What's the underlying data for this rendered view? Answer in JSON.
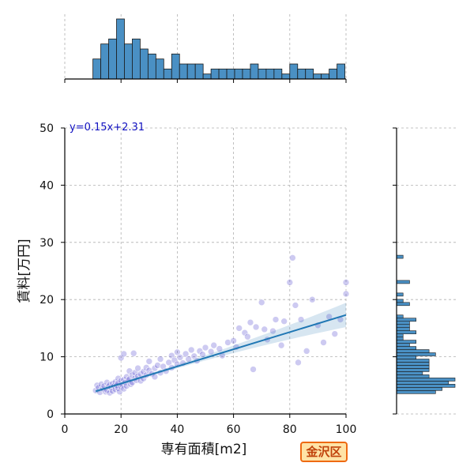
{
  "chart_data": {
    "type": "scatter",
    "xlabel": "専有面積[m2]",
    "ylabel": "賃料[万円]",
    "xlim": [
      0,
      100
    ],
    "ylim": [
      0,
      50
    ],
    "x_ticks": [
      "0",
      "20",
      "40",
      "60",
      "80",
      "100"
    ],
    "y_ticks": [
      "0",
      "10",
      "20",
      "30",
      "40",
      "50"
    ],
    "grid": true,
    "regression": {
      "equation_label": "y=0.15x+2.31",
      "slope": 0.15,
      "intercept": 2.31,
      "x_range": [
        11,
        100
      ]
    },
    "marker_color": "#5a4fd0",
    "line_color": "#1f77b4",
    "hist_color": "#4a90c4",
    "points": [
      [
        11,
        4.1
      ],
      [
        11.5,
        5.0
      ],
      [
        12,
        4.6
      ],
      [
        12.5,
        3.8
      ],
      [
        13,
        5.2
      ],
      [
        13.5,
        4.4
      ],
      [
        14,
        4.9
      ],
      [
        14.5,
        3.9
      ],
      [
        15,
        5.5
      ],
      [
        15,
        4.2
      ],
      [
        15.5,
        4.8
      ],
      [
        16,
        5.1
      ],
      [
        16,
        3.7
      ],
      [
        16.5,
        4.6
      ],
      [
        17,
        5.3
      ],
      [
        17,
        4.0
      ],
      [
        17.5,
        4.9
      ],
      [
        18,
        5.6
      ],
      [
        18,
        4.3
      ],
      [
        18.5,
        5.0
      ],
      [
        19,
        6.2
      ],
      [
        19,
        4.5
      ],
      [
        19,
        5.4
      ],
      [
        19.5,
        3.9
      ],
      [
        20,
        5.8
      ],
      [
        20,
        4.7
      ],
      [
        20,
        9.8
      ],
      [
        20.5,
        5.1
      ],
      [
        21,
        6.0
      ],
      [
        21,
        4.4
      ],
      [
        21,
        10.5
      ],
      [
        21.5,
        5.5
      ],
      [
        22,
        6.5
      ],
      [
        22,
        4.9
      ],
      [
        22.5,
        5.8
      ],
      [
        23,
        6.1
      ],
      [
        23,
        7.5
      ],
      [
        23.5,
        5.2
      ],
      [
        24,
        6.8
      ],
      [
        24,
        5.5
      ],
      [
        24.5,
        10.6
      ],
      [
        25,
        6.3
      ],
      [
        25,
        7.2
      ],
      [
        25.5,
        5.9
      ],
      [
        26,
        6.6
      ],
      [
        26,
        8.0
      ],
      [
        27,
        7.0
      ],
      [
        27,
        5.8
      ],
      [
        28,
        7.4
      ],
      [
        28,
        6.2
      ],
      [
        29,
        8.1
      ],
      [
        29,
        6.8
      ],
      [
        30,
        7.6
      ],
      [
        30,
        9.2
      ],
      [
        31,
        7.0
      ],
      [
        32,
        8.0
      ],
      [
        32,
        6.5
      ],
      [
        33,
        8.5
      ],
      [
        34,
        7.2
      ],
      [
        34,
        9.6
      ],
      [
        35,
        8.3
      ],
      [
        36,
        7.5
      ],
      [
        37,
        9.0
      ],
      [
        38,
        8.1
      ],
      [
        38,
        10.2
      ],
      [
        39,
        9.4
      ],
      [
        40,
        8.7
      ],
      [
        40,
        10.8
      ],
      [
        41,
        9.9
      ],
      [
        42,
        8.9
      ],
      [
        43,
        10.5
      ],
      [
        44,
        9.6
      ],
      [
        45,
        11.2
      ],
      [
        46,
        10.1
      ],
      [
        47,
        9.3
      ],
      [
        48,
        11.0
      ],
      [
        49,
        10.4
      ],
      [
        50,
        11.6
      ],
      [
        52,
        10.9
      ],
      [
        53,
        12.0
      ],
      [
        55,
        11.4
      ],
      [
        56,
        10.2
      ],
      [
        58,
        12.5
      ],
      [
        60,
        12.8
      ],
      [
        61,
        11.7
      ],
      [
        62,
        15.0
      ],
      [
        64,
        14.2
      ],
      [
        65,
        13.5
      ],
      [
        66,
        16.0
      ],
      [
        67,
        7.8
      ],
      [
        68,
        15.2
      ],
      [
        70,
        19.5
      ],
      [
        71,
        14.8
      ],
      [
        72,
        13.0
      ],
      [
        74,
        14.5
      ],
      [
        75,
        16.5
      ],
      [
        77,
        12.0
      ],
      [
        78,
        16.2
      ],
      [
        80,
        23.0
      ],
      [
        81,
        27.3
      ],
      [
        82,
        19.0
      ],
      [
        83,
        9.0
      ],
      [
        84,
        16.5
      ],
      [
        86,
        11.0
      ],
      [
        88,
        20.0
      ],
      [
        90,
        15.5
      ],
      [
        92,
        12.5
      ],
      [
        94,
        17.0
      ],
      [
        96,
        14.0
      ],
      [
        98,
        16.5
      ],
      [
        100,
        23.0
      ],
      [
        100,
        21.0
      ]
    ]
  },
  "badge": {
    "text": "金沢区"
  }
}
